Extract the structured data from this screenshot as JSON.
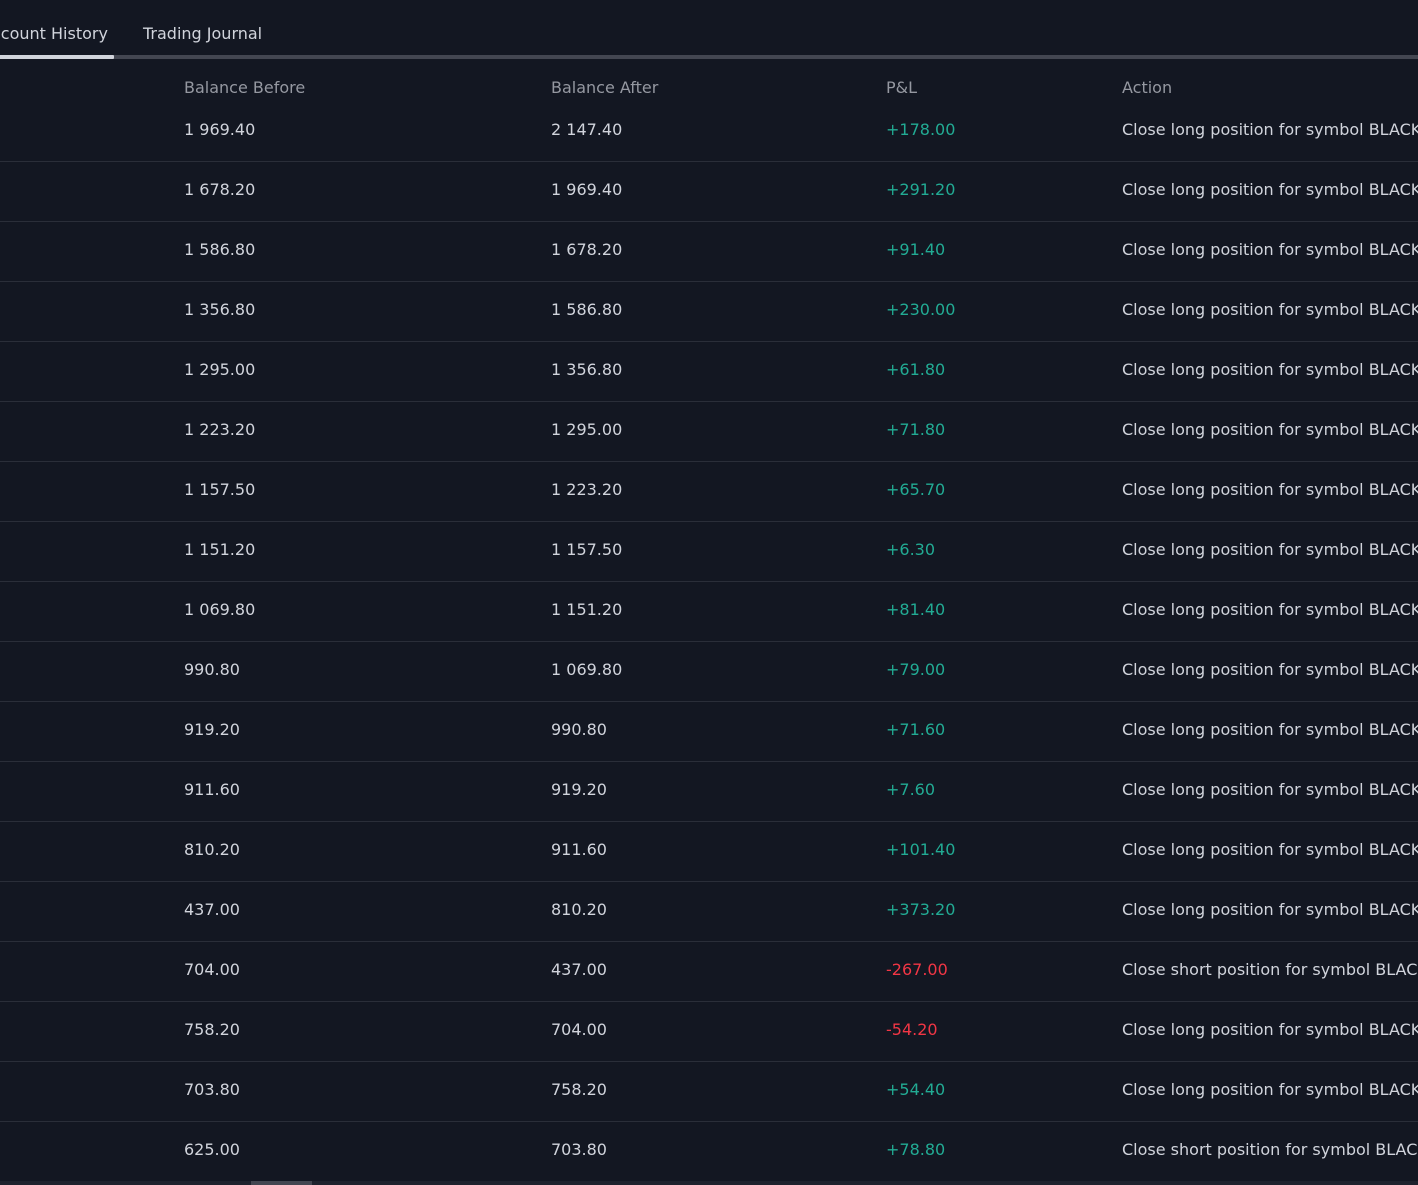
{
  "tabs": [
    {
      "label": "Account History",
      "visible_label": "ccount History",
      "active": true
    },
    {
      "label": "Trading Journal",
      "active": false
    }
  ],
  "columns": [
    "Balance Before",
    "Balance After",
    "P&L",
    "Action"
  ],
  "rows": [
    {
      "before": "1 969.40",
      "after": "2 147.40",
      "pl": "+178.00",
      "pl_sign": "pos",
      "action": "Close long position for symbol BLACKBULL:XAUUSD"
    },
    {
      "before": "1 678.20",
      "after": "1 969.40",
      "pl": "+291.20",
      "pl_sign": "pos",
      "action": "Close long position for symbol BLACKBULL:XAUUSD"
    },
    {
      "before": "1 586.80",
      "after": "1 678.20",
      "pl": "+91.40",
      "pl_sign": "pos",
      "action": "Close long position for symbol BLACKBULL:XAUUSD"
    },
    {
      "before": "1 356.80",
      "after": "1 586.80",
      "pl": "+230.00",
      "pl_sign": "pos",
      "action": "Close long position for symbol BLACKBULL:XAUUSD"
    },
    {
      "before": "1 295.00",
      "after": "1 356.80",
      "pl": "+61.80",
      "pl_sign": "pos",
      "action": "Close long position for symbol BLACKBULL:XAUUSD"
    },
    {
      "before": "1 223.20",
      "after": "1 295.00",
      "pl": "+71.80",
      "pl_sign": "pos",
      "action": "Close long position for symbol BLACKBULL:XAUUSD"
    },
    {
      "before": "1 157.50",
      "after": "1 223.20",
      "pl": "+65.70",
      "pl_sign": "pos",
      "action": "Close long position for symbol BLACKBULL:XAUUSD"
    },
    {
      "before": "1 151.20",
      "after": "1 157.50",
      "pl": "+6.30",
      "pl_sign": "pos",
      "action": "Close long position for symbol BLACKBULL:XAUUSD"
    },
    {
      "before": "1 069.80",
      "after": "1 151.20",
      "pl": "+81.40",
      "pl_sign": "pos",
      "action": "Close long position for symbol BLACKBULL:XAUUSD"
    },
    {
      "before": "990.80",
      "after": "1 069.80",
      "pl": "+79.00",
      "pl_sign": "pos",
      "action": "Close long position for symbol BLACKBULL:XAUUSD"
    },
    {
      "before": "919.20",
      "after": "990.80",
      "pl": "+71.60",
      "pl_sign": "pos",
      "action": "Close long position for symbol BLACKBULL:XAUUSD"
    },
    {
      "before": "911.60",
      "after": "919.20",
      "pl": "+7.60",
      "pl_sign": "pos",
      "action": "Close long position for symbol BLACKBULL:XAUUSD"
    },
    {
      "before": "810.20",
      "after": "911.60",
      "pl": "+101.40",
      "pl_sign": "pos",
      "action": "Close long position for symbol BLACKBULL:XAUUSD"
    },
    {
      "before": "437.00",
      "after": "810.20",
      "pl": "+373.20",
      "pl_sign": "pos",
      "action": "Close long position for symbol BLACKBULL:XAUUSD"
    },
    {
      "before": "704.00",
      "after": "437.00",
      "pl": "-267.00",
      "pl_sign": "neg",
      "action": "Close short position for symbol BLACKBULL:XAUUSD"
    },
    {
      "before": "758.20",
      "after": "704.00",
      "pl": "-54.20",
      "pl_sign": "neg",
      "action": "Close long position for symbol BLACKBULL:XAUUSD"
    },
    {
      "before": "703.80",
      "after": "758.20",
      "pl": "+54.40",
      "pl_sign": "pos",
      "action": "Close long position for symbol BLACKBULL:XAUUSD"
    },
    {
      "before": "625.00",
      "after": "703.80",
      "pl": "+78.80",
      "pl_sign": "pos",
      "action": "Close short position for symbol BLACKBULL:XAUUSD"
    }
  ],
  "colors": {
    "background": "#131722",
    "text": "#d1d4dc",
    "header_text": "#9598a1",
    "positive": "#22ab94",
    "negative": "#f23645",
    "divider": "#2a2e39"
  }
}
